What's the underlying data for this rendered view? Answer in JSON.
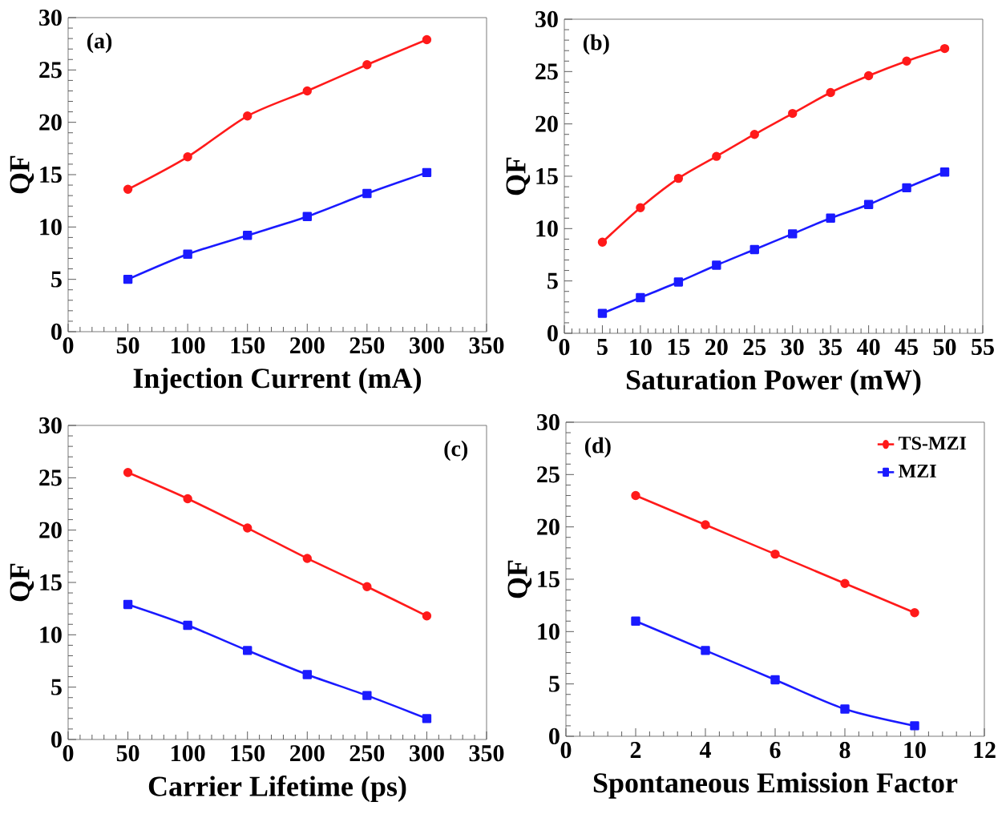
{
  "chart_data": [
    {
      "type": "line",
      "xlabel": "Injection Current (mA)",
      "ylabel": "QF",
      "annotations": [
        "(a)"
      ],
      "xlim": [
        0,
        350
      ],
      "xticks": [
        0,
        50,
        100,
        150,
        200,
        250,
        300,
        350
      ],
      "ylim": [
        0,
        30
      ],
      "yticks": [
        0,
        5,
        10,
        15,
        20,
        25,
        30
      ],
      "x": [
        50,
        100,
        150,
        200,
        250,
        300
      ],
      "line_style": "solid",
      "legend": false,
      "grid": false,
      "series": [
        {
          "color": "#ff1a1a",
          "marker": "circle",
          "values": [
            13.6,
            16.7,
            20.6,
            23,
            25.5,
            27.9
          ]
        },
        {
          "color": "#1a1aff",
          "marker": "square",
          "values": [
            5,
            7.4,
            9.2,
            11,
            13.2,
            15.2
          ]
        }
      ]
    },
    {
      "type": "line",
      "xlabel": "Saturation Power (mW)",
      "ylabel": "QF",
      "annotations": [
        "(b)"
      ],
      "xlim": [
        0,
        55
      ],
      "xticks": [
        0,
        5,
        10,
        15,
        20,
        25,
        30,
        35,
        40,
        45,
        50,
        55
      ],
      "ylim": [
        0,
        30
      ],
      "yticks": [
        0,
        5,
        10,
        15,
        20,
        25,
        30
      ],
      "x": [
        5,
        10,
        15,
        20,
        25,
        30,
        35,
        40,
        45,
        50
      ],
      "line_style": "solid",
      "legend": false,
      "grid": false,
      "series": [
        {
          "color": "#ff1a1a",
          "marker": "circle",
          "values": [
            8.7,
            12,
            14.8,
            16.9,
            19,
            21,
            23,
            24.6,
            26,
            27.2
          ]
        },
        {
          "color": "#1a1aff",
          "marker": "square",
          "values": [
            1.9,
            3.4,
            4.9,
            6.5,
            8,
            9.5,
            11,
            12.3,
            13.9,
            15.4
          ]
        }
      ]
    },
    {
      "type": "line",
      "xlabel": "Carrier Lifetime (ps)",
      "ylabel": "QF",
      "annotations": [
        "(c)"
      ],
      "xlim": [
        0,
        350
      ],
      "xticks": [
        0,
        50,
        100,
        150,
        200,
        250,
        300,
        350
      ],
      "ylim": [
        0,
        30
      ],
      "yticks": [
        0,
        5,
        10,
        15,
        20,
        25,
        30
      ],
      "x": [
        50,
        100,
        150,
        200,
        250,
        300
      ],
      "line_style": "solid",
      "legend": false,
      "grid": false,
      "series": [
        {
          "color": "#ff1a1a",
          "marker": "circle",
          "values": [
            25.5,
            23,
            20.2,
            17.3,
            14.6,
            11.8
          ]
        },
        {
          "color": "#1a1aff",
          "marker": "square",
          "values": [
            12.9,
            10.9,
            8.5,
            6.2,
            4.2,
            2
          ]
        }
      ]
    },
    {
      "type": "line",
      "xlabel": "Spontaneous Emission Factor",
      "ylabel": "QF",
      "annotations": [
        "(d)"
      ],
      "xlim": [
        0,
        12
      ],
      "xticks": [
        0,
        2,
        4,
        6,
        8,
        10,
        12
      ],
      "ylim": [
        0,
        30
      ],
      "yticks": [
        0,
        5,
        10,
        15,
        20,
        25,
        30
      ],
      "x": [
        2,
        4,
        6,
        8,
        10
      ],
      "line_style": "solid",
      "legend": "top right",
      "grid": false,
      "series": [
        {
          "name": "TS-MZI",
          "color": "#ff1a1a",
          "marker": "circle",
          "values": [
            23,
            20.2,
            17.4,
            14.6,
            11.8
          ]
        },
        {
          "name": "MZI",
          "color": "#1a1aff",
          "marker": "square",
          "values": [
            11,
            8.2,
            5.4,
            2.6,
            1
          ]
        }
      ]
    }
  ]
}
